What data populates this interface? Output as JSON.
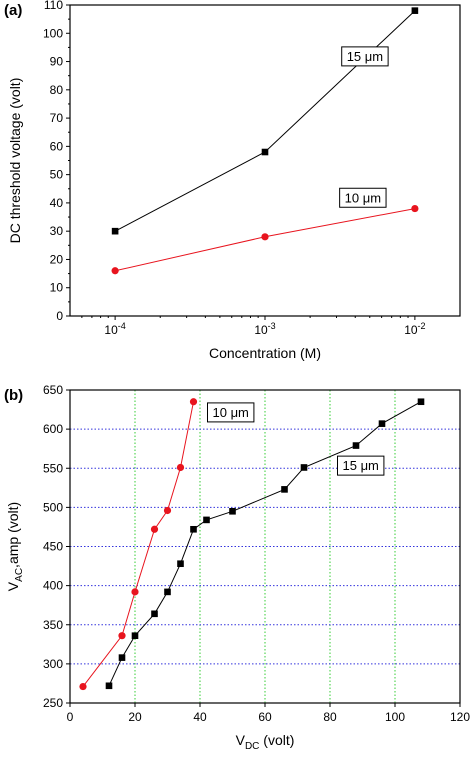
{
  "chart_data": [
    {
      "type": "line",
      "panel_label": "(a)",
      "xlabel": "Concentration (M)",
      "ylabel": "DC threshold voltage (volt)",
      "x_scale": "log",
      "xlim": [
        5e-05,
        0.02
      ],
      "ylim": [
        0,
        110
      ],
      "x_ticks": [
        0.0001,
        0.001,
        0.01
      ],
      "x_tick_labels": [
        {
          "base": "10",
          "exp": "-4"
        },
        {
          "base": "10",
          "exp": "-3"
        },
        {
          "base": "10",
          "exp": "-2"
        }
      ],
      "y_ticks": [
        0,
        10,
        20,
        30,
        40,
        50,
        60,
        70,
        80,
        90,
        100,
        110
      ],
      "grid": false,
      "series": [
        {
          "name": "15 μm",
          "color": "#000000",
          "marker": "square",
          "x": [
            0.0001,
            0.001,
            0.01
          ],
          "y": [
            30,
            58,
            108
          ],
          "label_at": [
            0.0032,
            92
          ]
        },
        {
          "name": "10 μm",
          "color": "#e8141e",
          "marker": "circle",
          "x": [
            0.0001,
            0.001,
            0.01
          ],
          "y": [
            16,
            28,
            38
          ],
          "label_at": [
            0.0031,
            42
          ]
        }
      ]
    },
    {
      "type": "line",
      "panel_label": "(b)",
      "xlabel": {
        "main": "V",
        "sub": "DC",
        "rest": " (volt)"
      },
      "ylabel": {
        "main": "V",
        "sub": "AC",
        "rest": ",amp (volt)"
      },
      "xlim": [
        0,
        120
      ],
      "ylim": [
        250,
        650
      ],
      "x_ticks": [
        0,
        20,
        40,
        60,
        80,
        100,
        120
      ],
      "y_ticks": [
        250,
        300,
        350,
        400,
        450,
        500,
        550,
        600,
        650
      ],
      "grid": true,
      "grid_color_x": "#33cc33",
      "grid_color_y": "#3333dd",
      "series": [
        {
          "name": "10 μm",
          "color": "#e8141e",
          "marker": "circle",
          "x": [
            4,
            16,
            20,
            26,
            30,
            34,
            38
          ],
          "y": [
            271,
            336,
            392,
            472,
            496,
            551,
            635
          ],
          "label_at": [
            42,
            622
          ]
        },
        {
          "name": "15 μm",
          "color": "#000000",
          "marker": "square",
          "x": [
            12,
            16,
            20,
            26,
            30,
            34,
            38,
            42,
            50,
            66,
            72,
            88,
            96,
            108
          ],
          "y": [
            272,
            308,
            336,
            364,
            392,
            428,
            472,
            484,
            495,
            523,
            551,
            579,
            607,
            635
          ],
          "label_at": [
            82,
            554
          ]
        }
      ]
    }
  ]
}
